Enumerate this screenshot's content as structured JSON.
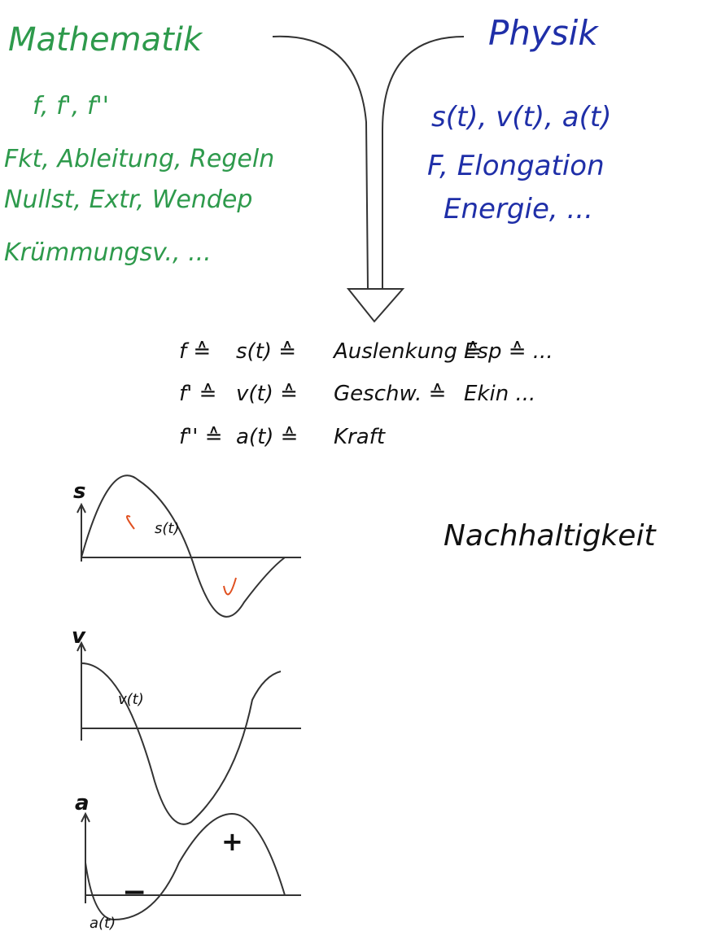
{
  "mathematik": {
    "title": "Mathematik",
    "items": [
      "f, f', f''",
      "Fkt, Ableitung, Regeln",
      "Nullst, Extr, Wendep",
      "Krümmungsv., ..."
    ]
  },
  "physik": {
    "title": "Physik",
    "items": [
      "s(t), v(t), a(t)",
      "F, Elongation",
      "Energie, ..."
    ]
  },
  "mapping": {
    "rows": [
      [
        "f ≙",
        "s(t) ≙",
        "Auslenkung ≙",
        "Esp ≙ ..."
      ],
      [
        "f' ≙",
        "v(t) ≙",
        "Geschw. ≙",
        "Ekin ..."
      ],
      [
        "f'' ≙",
        "a(t) ≙",
        "Kraft"
      ]
    ]
  },
  "keyword": "Nachhaltigkeit",
  "graphs": [
    {
      "axis": "s",
      "curve_label": "s(t)"
    },
    {
      "axis": "v",
      "curve_label": "v(t)"
    },
    {
      "axis": "a",
      "curve_label": "a(t)",
      "signs": [
        "−",
        "+"
      ]
    }
  ]
}
